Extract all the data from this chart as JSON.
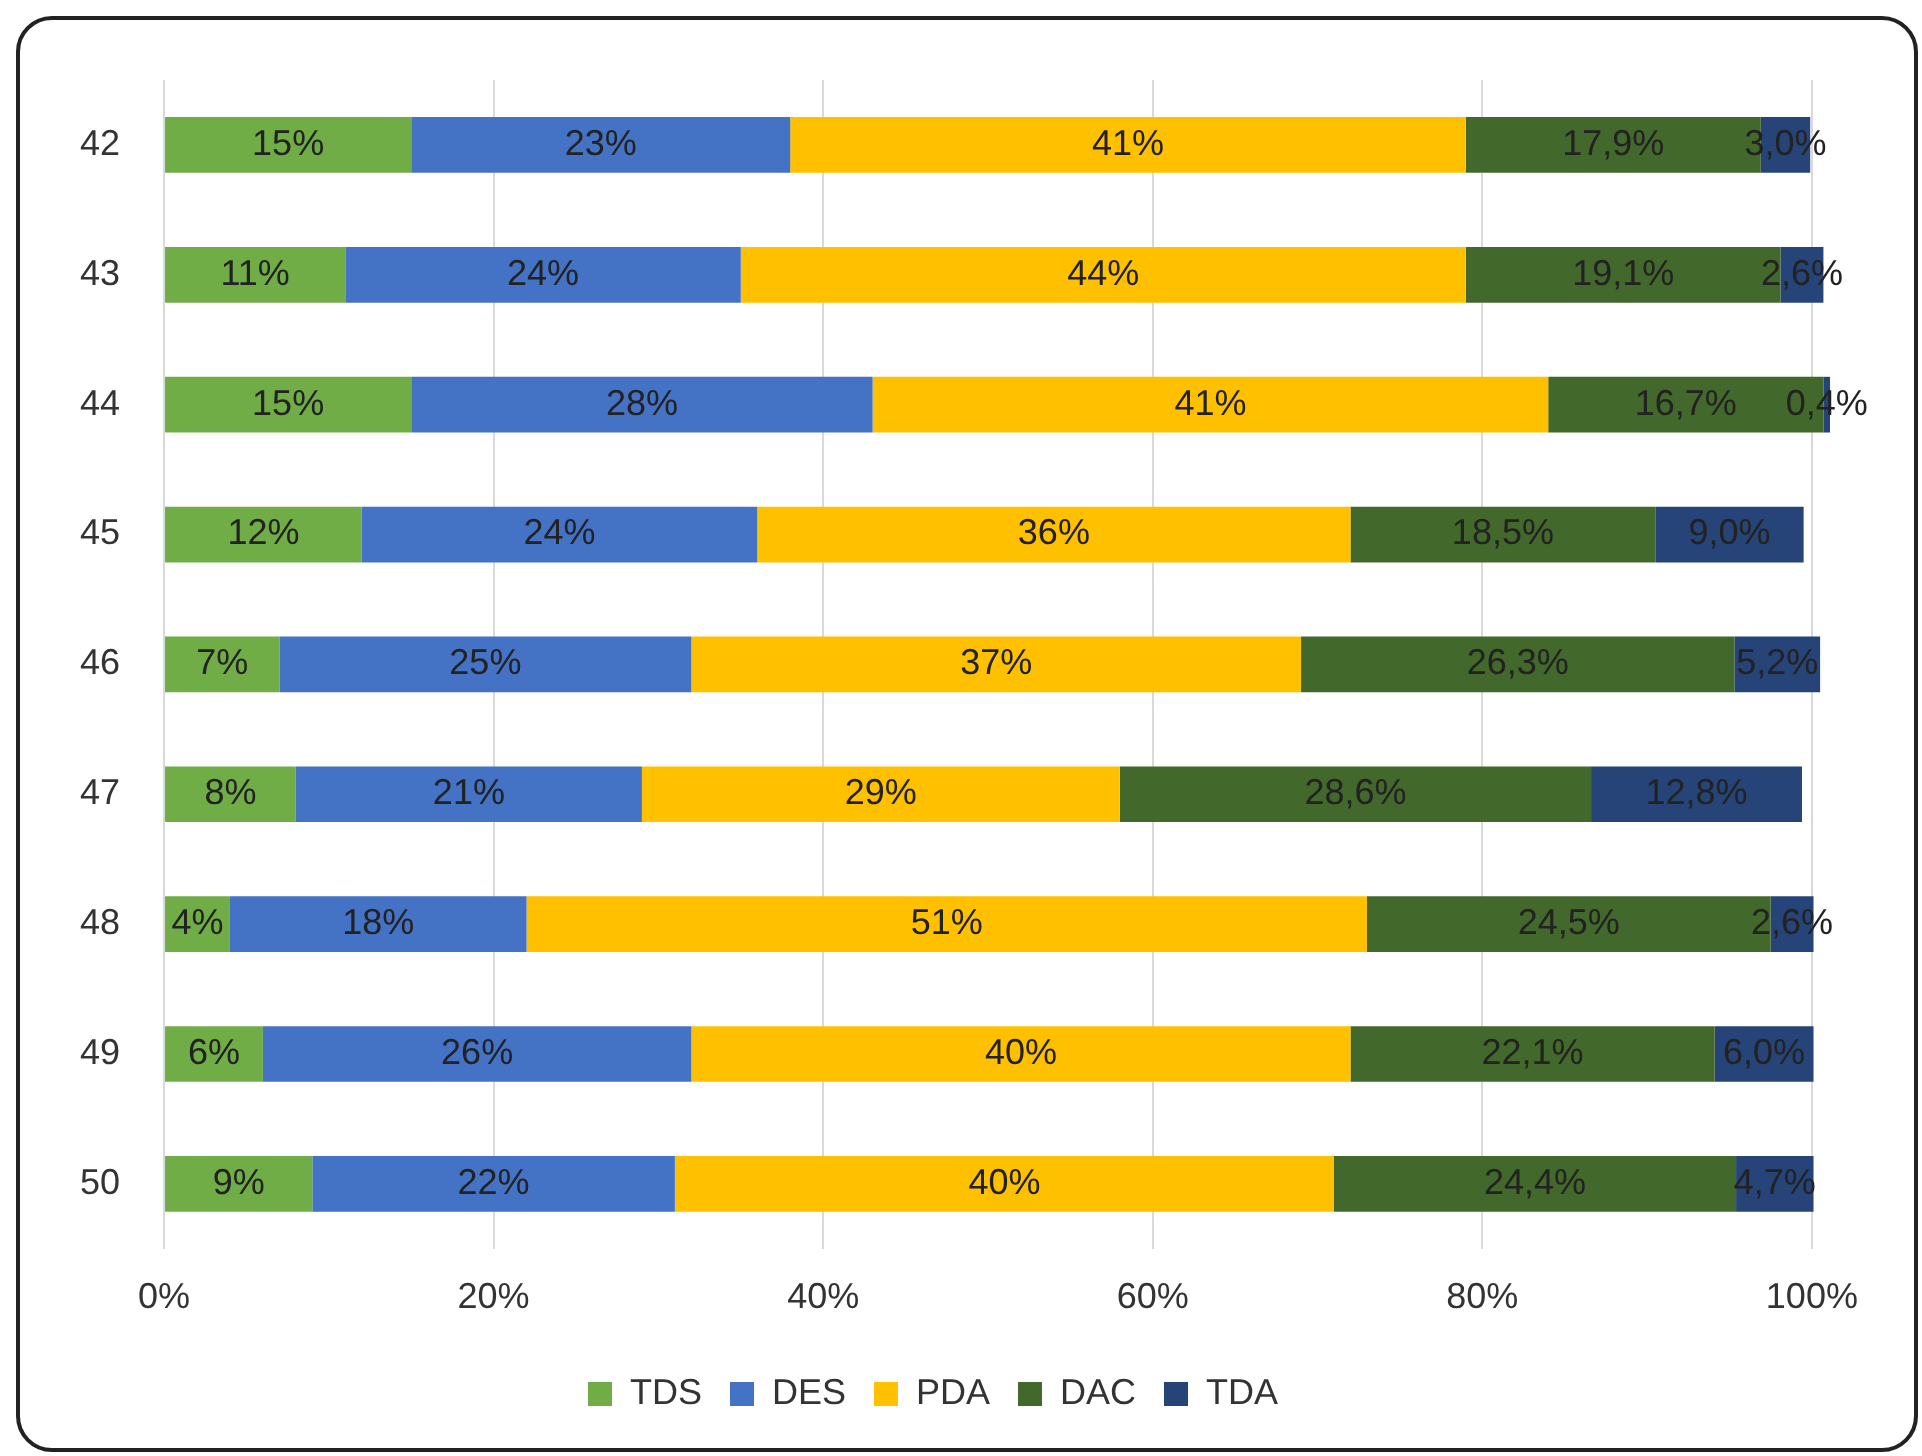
{
  "chart_data": {
    "type": "bar",
    "orientation": "horizontal",
    "stacked": true,
    "categories": [
      "42",
      "43",
      "44",
      "45",
      "46",
      "47",
      "48",
      "49",
      "50"
    ],
    "series": [
      {
        "name": "TDS",
        "color": "#70ad47",
        "values": [
          15,
          11,
          15,
          12,
          7,
          8,
          4,
          6,
          9
        ],
        "value_labels": [
          "15%",
          "11%",
          "15%",
          "12%",
          "7%",
          "8%",
          "4%",
          "6%",
          "9%"
        ]
      },
      {
        "name": "DES",
        "color": "#4472c4",
        "values": [
          23,
          24,
          28,
          24,
          25,
          21,
          18,
          26,
          22
        ],
        "value_labels": [
          "23%",
          "24%",
          "28%",
          "24%",
          "25%",
          "21%",
          "18%",
          "26%",
          "22%"
        ]
      },
      {
        "name": "PDA",
        "color": "#ffc000",
        "values": [
          41,
          44,
          41,
          36,
          37,
          29,
          51,
          40,
          40
        ],
        "value_labels": [
          "41%",
          "44%",
          "41%",
          "36%",
          "37%",
          "29%",
          "51%",
          "40%",
          "40%"
        ]
      },
      {
        "name": "DAC",
        "color": "#43682b",
        "values": [
          17.9,
          19.1,
          16.7,
          18.5,
          26.3,
          28.6,
          24.5,
          22.1,
          24.4
        ],
        "value_labels": [
          "17,9%",
          "19,1%",
          "16,7%",
          "18,5%",
          "26,3%",
          "28,6%",
          "24,5%",
          "22,1%",
          "24,4%"
        ]
      },
      {
        "name": "TDA",
        "color": "#264478",
        "values": [
          3.0,
          2.6,
          0.4,
          9.0,
          5.2,
          12.8,
          2.6,
          6.0,
          4.7
        ],
        "value_labels": [
          "3,0%",
          "2,6%",
          "0,4%",
          "9,0%",
          "5,2%",
          "12,8%",
          "2,6%",
          "6,0%",
          "4,7%"
        ]
      }
    ],
    "xlim": [
      0,
      101.1
    ],
    "xticks": [
      {
        "value": 0,
        "label": "0%"
      },
      {
        "value": 20,
        "label": "20%"
      },
      {
        "value": 40,
        "label": "40%"
      },
      {
        "value": 60,
        "label": "60%"
      },
      {
        "value": 80,
        "label": "80%"
      },
      {
        "value": 100,
        "label": "100%"
      }
    ],
    "grid": "x",
    "legend": "bottom"
  }
}
